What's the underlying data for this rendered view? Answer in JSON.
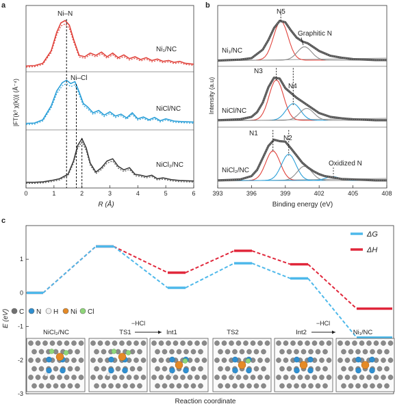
{
  "chart_data": [
    {
      "panel": "a",
      "type": "line",
      "xlabel": "R (Å)",
      "ylabel": "|FT(k³ χ(k))| (Å⁻⁴)",
      "xlim": [
        0,
        6
      ],
      "xticks": [
        0,
        1,
        2,
        3,
        4,
        5,
        6
      ],
      "series": [
        {
          "name": "Ni1/NC",
          "color": "#e0413a",
          "x": [
            0,
            0.3,
            0.6,
            0.9,
            1.1,
            1.25,
            1.4,
            1.55,
            1.7,
            1.9,
            2.1,
            2.3,
            2.5,
            2.7,
            2.9,
            3.1,
            3.3,
            3.5,
            3.7,
            3.9,
            4.1,
            4.3,
            4.5,
            4.7,
            4.9,
            5.1,
            5.3,
            5.5,
            5.7,
            6.0
          ],
          "y": [
            0.02,
            0.03,
            0.08,
            0.35,
            0.75,
            0.95,
            1.0,
            0.9,
            0.6,
            0.25,
            0.22,
            0.3,
            0.25,
            0.32,
            0.22,
            0.3,
            0.2,
            0.26,
            0.18,
            0.22,
            0.16,
            0.2,
            0.14,
            0.17,
            0.12,
            0.14,
            0.1,
            0.12,
            0.08,
            0.06
          ]
        },
        {
          "name": "NiCl/NC",
          "color": "#2a9fd8",
          "x": [
            0,
            0.3,
            0.6,
            0.9,
            1.1,
            1.3,
            1.45,
            1.6,
            1.75,
            1.9,
            2.05,
            2.2,
            2.4,
            2.6,
            2.8,
            3.0,
            3.2,
            3.4,
            3.6,
            3.8,
            4.0,
            4.2,
            4.4,
            4.6,
            4.8,
            5.0,
            5.3,
            5.6,
            6.0
          ],
          "y": [
            0.02,
            0.03,
            0.1,
            0.4,
            0.72,
            0.9,
            0.95,
            0.88,
            0.92,
            0.7,
            0.45,
            0.38,
            0.25,
            0.3,
            0.2,
            0.27,
            0.18,
            0.22,
            0.14,
            0.25,
            0.12,
            0.16,
            0.1,
            0.15,
            0.08,
            0.12,
            0.07,
            0.06,
            0.05
          ]
        },
        {
          "name": "NiCl2/NC",
          "color": "#3a3a3a",
          "x": [
            0,
            0.3,
            0.6,
            0.9,
            1.2,
            1.5,
            1.7,
            1.85,
            2.0,
            2.15,
            2.3,
            2.5,
            2.7,
            2.9,
            3.1,
            3.3,
            3.5,
            3.7,
            3.9,
            4.1,
            4.3,
            4.5,
            4.7,
            4.9,
            5.2,
            5.5,
            6.0
          ],
          "y": [
            0.02,
            0.02,
            0.03,
            0.06,
            0.1,
            0.2,
            0.5,
            0.85,
            1.0,
            0.8,
            0.45,
            0.25,
            0.35,
            0.5,
            0.55,
            0.38,
            0.3,
            0.35,
            0.2,
            0.18,
            0.15,
            0.18,
            0.1,
            0.12,
            0.08,
            0.06,
            0.05
          ]
        }
      ],
      "annotations": [
        "Ni–N",
        "Ni–Cl"
      ],
      "vlines": [
        1.45,
        1.8,
        2.0
      ]
    },
    {
      "panel": "b",
      "type": "line",
      "xlabel": "Binding energy (eV)",
      "ylabel": "Intensity (a.u)",
      "xlim": [
        393,
        408
      ],
      "xticks": [
        393,
        396,
        399,
        402,
        405,
        408
      ],
      "panels": [
        {
          "name": "Ni1/NC",
          "x": [
            393,
            394,
            395,
            396,
            397,
            397.5,
            398,
            398.5,
            399,
            399.5,
            400,
            400.5,
            401,
            401.5,
            402,
            403,
            404,
            405,
            406,
            407,
            408
          ],
          "y": [
            0.02,
            0.03,
            0.04,
            0.07,
            0.25,
            0.45,
            0.7,
            0.85,
            0.82,
            0.65,
            0.5,
            0.42,
            0.38,
            0.3,
            0.22,
            0.12,
            0.08,
            0.05,
            0.04,
            0.03,
            0.03
          ],
          "peaks": [
            {
              "label": "N5",
              "center": 398.6,
              "height": 0.82,
              "color": "#e0413a"
            },
            {
              "label": "Graphitic N",
              "center": 400.7,
              "height": 0.28,
              "color": "#8a8a8a"
            }
          ]
        },
        {
          "name": "NiCl/NC",
          "x": [
            393,
            394,
            395,
            396,
            396.5,
            397,
            397.5,
            398,
            398.5,
            399,
            399.5,
            400,
            400.5,
            401,
            401.5,
            402,
            403,
            404,
            405,
            406,
            407,
            408
          ],
          "y": [
            0.03,
            0.04,
            0.05,
            0.1,
            0.2,
            0.4,
            0.72,
            0.92,
            0.9,
            0.7,
            0.6,
            0.5,
            0.42,
            0.34,
            0.26,
            0.18,
            0.1,
            0.07,
            0.05,
            0.04,
            0.03,
            0.03
          ],
          "peaks": [
            {
              "label": "N3",
              "center": 398.2,
              "height": 0.85,
              "color": "#e0413a"
            },
            {
              "label": "N4",
              "center": 399.7,
              "height": 0.35,
              "color": "#2a9fd8"
            },
            {
              "label": "",
              "center": 400.9,
              "height": 0.25,
              "color": "#8a8a8a"
            }
          ]
        },
        {
          "name": "NiCl2/NC",
          "x": [
            393,
            394,
            395,
            396,
            396.5,
            397,
            397.5,
            398,
            398.5,
            399,
            399.5,
            400,
            400.5,
            401,
            401.5,
            402,
            402.5,
            403,
            403.5,
            404,
            405,
            406,
            407,
            408
          ],
          "y": [
            0.03,
            0.04,
            0.05,
            0.12,
            0.25,
            0.5,
            0.75,
            0.88,
            0.85,
            0.84,
            0.7,
            0.55,
            0.4,
            0.3,
            0.22,
            0.16,
            0.12,
            0.1,
            0.08,
            0.06,
            0.05,
            0.04,
            0.03,
            0.03
          ],
          "peaks": [
            {
              "label": "N1",
              "center": 397.9,
              "height": 0.62,
              "color": "#e0413a"
            },
            {
              "label": "N2",
              "center": 399.3,
              "height": 0.55,
              "color": "#2a9fd8"
            },
            {
              "label": "",
              "center": 400.7,
              "height": 0.3,
              "color": "#8a8a8a"
            },
            {
              "label": "Oxidized N",
              "center": 403.2,
              "height": 0.08,
              "color": "#2a9fd8"
            }
          ]
        }
      ]
    },
    {
      "panel": "c",
      "type": "line",
      "xlabel": "Reaction coordinate",
      "ylabel": "E (eV)",
      "ylim": [
        -3,
        2
      ],
      "yticks": [
        -3,
        -2,
        -1,
        0,
        1
      ],
      "states": [
        "NiCl2/NC",
        "TS1",
        "Int1",
        "TS2",
        "Int2",
        "Ni1/NC"
      ],
      "step_labels": [
        "−HCl",
        "−HCl"
      ],
      "series": [
        {
          "name": "ΔG",
          "color": "#4db8ea",
          "values": [
            0.0,
            1.38,
            0.15,
            0.88,
            0.43,
            -1.33
          ]
        },
        {
          "name": "ΔH",
          "color": "#e0263a",
          "values": [
            0.0,
            1.38,
            0.6,
            1.25,
            0.85,
            -0.47
          ]
        }
      ],
      "atom_legend": [
        {
          "name": "C",
          "color": "#707070"
        },
        {
          "name": "N",
          "color": "#2f8fd0"
        },
        {
          "name": "H",
          "color": "#f2f2f2"
        },
        {
          "name": "Ni",
          "color": "#e58a26"
        },
        {
          "name": "Cl",
          "color": "#8fd67a"
        }
      ]
    }
  ]
}
